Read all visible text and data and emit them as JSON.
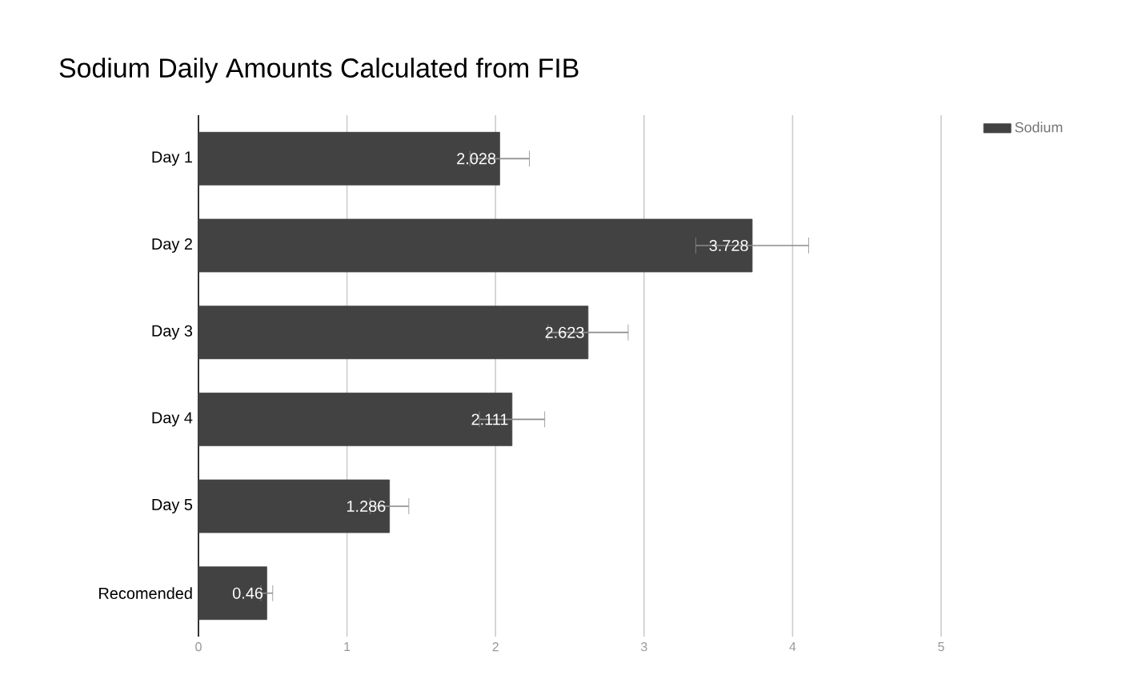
{
  "chart_data": {
    "type": "bar",
    "orientation": "horizontal",
    "title": "Sodium Daily Amounts Calculated from FIB",
    "categories": [
      "Day 1",
      "Day 2",
      "Day 3",
      "Day 4",
      "Day 5",
      "Recomended"
    ],
    "series": [
      {
        "name": "Sodium",
        "color": "#424242",
        "values": [
          2.028,
          3.728,
          2.623,
          2.111,
          1.286,
          0.46
        ],
        "errors": [
          0.2,
          0.38,
          0.27,
          0.22,
          0.13,
          0.04
        ]
      }
    ],
    "xlim": [
      0,
      5
    ],
    "xticks": [
      0,
      1,
      2,
      3,
      4,
      5
    ],
    "grid": "x",
    "legend": "top right",
    "data_labels": true
  }
}
